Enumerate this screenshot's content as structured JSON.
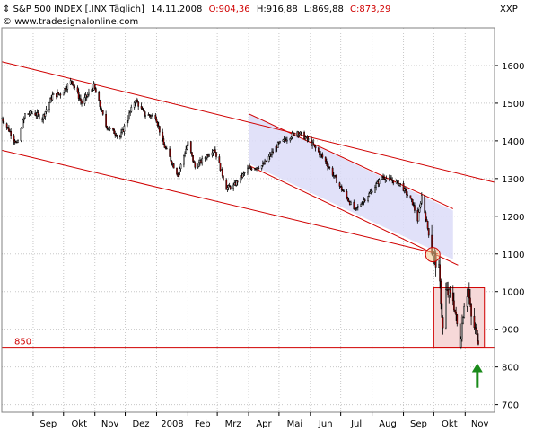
{
  "header": {
    "title": "S&P 500 INDEX [.INX  Täglich]",
    "date": "14.11.2008",
    "open_label": "O:",
    "open_value": "904,36",
    "high": "H:916,88",
    "low": "L:869,88",
    "close": "C:873,29",
    "source": "www.tradesignalonline.com",
    "axis_code": "XXP"
  },
  "colors": {
    "up": "#ffffff",
    "down": "#c00000",
    "wick": "#000000",
    "channel": "#d00000",
    "channel_fill": "#dcdcf8",
    "box_fill": "#f6d8d8",
    "arrow": "#1a8a1a",
    "grid": "#c8c8c8"
  },
  "chart_data": {
    "type": "candlestick",
    "ylim": [
      680,
      1700
    ],
    "yticks": [
      700,
      800,
      900,
      1000,
      1100,
      1200,
      1300,
      1400,
      1500,
      1600
    ],
    "ytick_labels": [
      "700",
      "800",
      "900",
      "1000",
      "1100",
      "1200",
      "1300",
      "1400",
      "1500",
      "1600"
    ],
    "grid": "dotted",
    "x_start": "2007-08-01",
    "x_end": "2008-11-30",
    "months": [
      {
        "label": "Sep",
        "date": "2007-09-01"
      },
      {
        "label": "Okt",
        "date": "2007-10-01"
      },
      {
        "label": "Nov",
        "date": "2007-11-01"
      },
      {
        "label": "Dez",
        "date": "2007-12-01"
      },
      {
        "label": "2008",
        "date": "2008-01-01"
      },
      {
        "label": "Feb",
        "date": "2008-02-01"
      },
      {
        "label": "Mrz",
        "date": "2008-03-01"
      },
      {
        "label": "Apr",
        "date": "2008-04-01"
      },
      {
        "label": "Mai",
        "date": "2008-05-01"
      },
      {
        "label": "Jun",
        "date": "2008-06-01"
      },
      {
        "label": "Jul",
        "date": "2008-07-01"
      },
      {
        "label": "Aug",
        "date": "2008-08-01"
      },
      {
        "label": "Sep",
        "date": "2008-09-01"
      },
      {
        "label": "Okt",
        "date": "2008-10-01"
      },
      {
        "label": "Nov",
        "date": "2008-11-01"
      }
    ],
    "close_path": [
      [
        "2007-08-01",
        1460
      ],
      [
        "2007-08-10",
        1420
      ],
      [
        "2007-08-16",
        1390
      ],
      [
        "2007-08-24",
        1470
      ],
      [
        "2007-09-01",
        1475
      ],
      [
        "2007-09-10",
        1460
      ],
      [
        "2007-09-20",
        1520
      ],
      [
        "2007-09-28",
        1525
      ],
      [
        "2007-10-09",
        1560
      ],
      [
        "2007-10-19",
        1500
      ],
      [
        "2007-10-31",
        1545
      ],
      [
        "2007-11-12",
        1440
      ],
      [
        "2007-11-26",
        1410
      ],
      [
        "2007-12-11",
        1510
      ],
      [
        "2007-12-20",
        1470
      ],
      [
        "2007-12-31",
        1465
      ],
      [
        "2008-01-08",
        1390
      ],
      [
        "2008-01-22",
        1310
      ],
      [
        "2008-02-01",
        1395
      ],
      [
        "2008-02-08",
        1330
      ],
      [
        "2008-02-27",
        1380
      ],
      [
        "2008-03-10",
        1275
      ],
      [
        "2008-03-17",
        1280
      ],
      [
        "2008-03-31",
        1325
      ],
      [
        "2008-04-15",
        1335
      ],
      [
        "2008-04-30",
        1390
      ],
      [
        "2008-05-19",
        1425
      ],
      [
        "2008-05-31",
        1400
      ],
      [
        "2008-06-15",
        1350
      ],
      [
        "2008-06-30",
        1280
      ],
      [
        "2008-07-15",
        1215
      ],
      [
        "2008-07-31",
        1265
      ],
      [
        "2008-08-11",
        1305
      ],
      [
        "2008-08-29",
        1285
      ],
      [
        "2008-09-10",
        1235
      ],
      [
        "2008-09-15",
        1190
      ],
      [
        "2008-09-19",
        1255
      ],
      [
        "2008-09-29",
        1110
      ],
      [
        "2008-10-06",
        1055
      ],
      [
        "2008-10-10",
        900
      ],
      [
        "2008-10-13",
        1000
      ],
      [
        "2008-10-20",
        980
      ],
      [
        "2008-10-27",
        860
      ],
      [
        "2008-10-31",
        970
      ],
      [
        "2008-11-04",
        1005
      ],
      [
        "2008-11-07",
        930
      ],
      [
        "2008-11-14",
        873
      ]
    ],
    "annotations": {
      "support_label": "850",
      "support_level": 850,
      "outer_channel": {
        "upper": [
          [
            "2007-08-01",
            1610
          ],
          [
            "2008-11-30",
            1290
          ]
        ],
        "lower": [
          [
            "2007-08-01",
            1375
          ],
          [
            "2008-10-05",
            1100
          ]
        ]
      },
      "inner_channel": {
        "upper": [
          [
            "2008-04-01",
            1472
          ],
          [
            "2008-10-20",
            1220
          ]
        ],
        "lower": [
          [
            "2008-04-01",
            1335
          ],
          [
            "2008-10-25",
            1070
          ]
        ],
        "fill_top_start": 1472,
        "fill_top_end": 1215,
        "fill_bottom_start": 1340,
        "fill_bottom_end": 1085
      },
      "breakout_circle": {
        "date": "2008-09-30",
        "value": 1098
      },
      "consolidation_box": {
        "from": "2008-10-01",
        "to": "2008-11-20",
        "top": 1010,
        "bottom": 852
      },
      "arrow": {
        "date": "2008-11-13",
        "from": 745,
        "to": 810
      }
    }
  }
}
